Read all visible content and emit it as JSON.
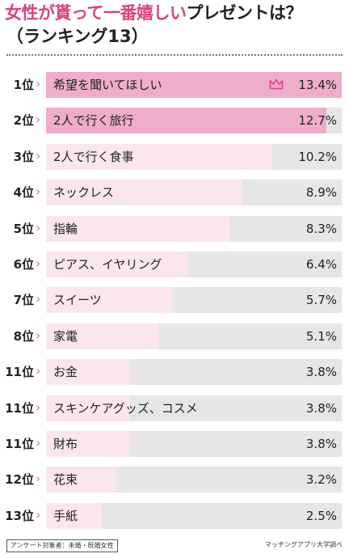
{
  "colors": {
    "accent": "#d9447f",
    "top_fill": "#efaccb",
    "fill": "#fbe6ee",
    "track": "#e6e6e6",
    "chevron": "#e47aa6"
  },
  "title": {
    "pink": "女性が貰って一番嬉しい",
    "dark": "プレゼントは？",
    "sub": "（ランキング13）"
  },
  "chart_data": {
    "type": "bar",
    "title": "女性が貰って一番嬉しいプレゼントは？（ランキング13）",
    "unit": "%",
    "xlim": [
      0,
      13.4
    ],
    "rows": [
      {
        "rank": "1位",
        "label": "希望を聞いてほしい",
        "value": 13.4,
        "value_label": "13.4%",
        "icon": "crown-icon"
      },
      {
        "rank": "2位",
        "label": "2人で行く旅行",
        "value": 12.7,
        "value_label": "12.7%"
      },
      {
        "rank": "3位",
        "label": "2人で行く食事",
        "value": 10.2,
        "value_label": "10.2%"
      },
      {
        "rank": "4位",
        "label": "ネックレス",
        "value": 8.9,
        "value_label": "8.9%"
      },
      {
        "rank": "5位",
        "label": "指輪",
        "value": 8.3,
        "value_label": "8.3%"
      },
      {
        "rank": "6位",
        "label": "ピアス、イヤリング",
        "value": 6.4,
        "value_label": "6.4%"
      },
      {
        "rank": "7位",
        "label": "スイーツ",
        "value": 5.7,
        "value_label": "5.7%"
      },
      {
        "rank": "8位",
        "label": "家電",
        "value": 5.1,
        "value_label": "5.1%"
      },
      {
        "rank": "11位",
        "label": "お金",
        "value": 3.8,
        "value_label": "3.8%"
      },
      {
        "rank": "11位",
        "label": "スキンケアグッズ、コスメ",
        "value": 3.8,
        "value_label": "3.8%"
      },
      {
        "rank": "11位",
        "label": "財布",
        "value": 3.8,
        "value_label": "3.8%"
      },
      {
        "rank": "12位",
        "label": "花束",
        "value": 3.2,
        "value_label": "3.2%"
      },
      {
        "rank": "13位",
        "label": "手紙",
        "value": 2.5,
        "value_label": "2.5%"
      }
    ]
  },
  "footer": {
    "survey_target": "アンケート対象者：未婚・既婚女性",
    "source": "マッチングアプリ大学調べ"
  }
}
